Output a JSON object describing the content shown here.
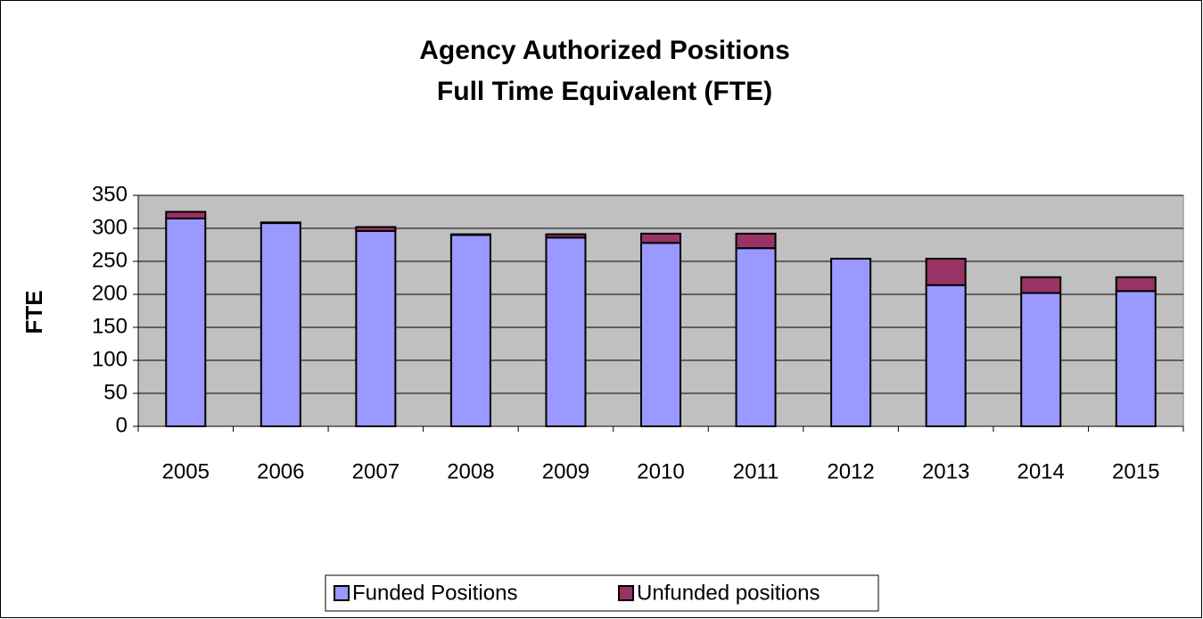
{
  "chart_data": {
    "type": "stacked_bar",
    "title": "Agency Authorized Positions",
    "subtitle": "Full Time Equivalent (FTE)",
    "y_label": "FTE",
    "categories": [
      "2005",
      "2006",
      "2007",
      "2008",
      "2009",
      "2010",
      "2011",
      "2012",
      "2013",
      "2014",
      "2015"
    ],
    "series": [
      {
        "name": "Funded Positions",
        "color": "#9999ff",
        "values": [
          315,
          308,
          296,
          290,
          286,
          278,
          270,
          254,
          214,
          202,
          205
        ]
      },
      {
        "name": "Unfunded positions",
        "color": "#993366",
        "values": [
          10,
          1,
          6,
          1,
          5,
          14,
          22,
          0,
          40,
          24,
          21
        ]
      }
    ],
    "ylim": [
      0,
      350
    ],
    "yticks": [
      0,
      50,
      100,
      150,
      200,
      250,
      300,
      350
    ],
    "grid": true,
    "legend": "bottom"
  }
}
